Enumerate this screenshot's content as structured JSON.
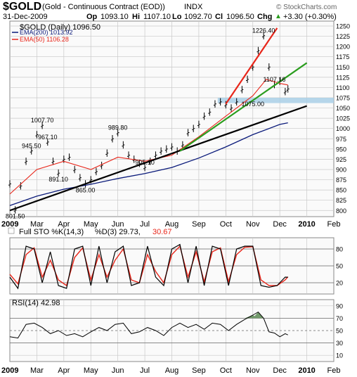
{
  "header": {
    "symbol": "$GOLD",
    "name": "(Gold - Continuous Contract (EOD))",
    "exchange": "INDX",
    "date": "31-Dec-2009",
    "open_label": "Op",
    "open": "1093.10",
    "high_label": "Hi",
    "high": "1107.10",
    "low_label": "Lo",
    "low": "1092.70",
    "close_label": "Cl",
    "close": "1096.50",
    "change_label": "Chg",
    "change": "+3.30 (+0.30%)",
    "change_arrow": "▲",
    "watermark": "© StockCharts.com"
  },
  "colors": {
    "price": "#000000",
    "ema200": "#0a1a7a",
    "ema50": "#e8261a",
    "trend_red": "#e8261a",
    "trend_green": "#2a9d1e",
    "trend_black": "#000000",
    "band": "#a9cfe6",
    "sto_k": "#000000",
    "sto_d": "#e8261a",
    "rsi": "#000000",
    "rsi_fill": "#5a8a52",
    "panel_bg": "#fafafa",
    "grid": "#c8c8c8"
  },
  "chart_data": [
    {
      "type": "line",
      "panel": "price",
      "legend": [
        {
          "label": "$GOLD (Daily) 1096.50",
          "color": "#000000"
        },
        {
          "label": "EMA(200) 1013.92",
          "color": "#0a1a7a"
        },
        {
          "label": "EMA(50) 1106.28",
          "color": "#e8261a"
        }
      ],
      "x_labels": [
        "2009",
        "Mar",
        "Apr",
        "May",
        "Jun",
        "Jul",
        "Aug",
        "Sep",
        "Oct",
        "Nov",
        "Dec",
        "2010",
        "Feb"
      ],
      "y_ticks": [
        800,
        825,
        850,
        875,
        900,
        925,
        950,
        975,
        1000,
        1025,
        1050,
        1075,
        1100,
        1125,
        1150,
        1175,
        1200,
        1225,
        1250
      ],
      "ylim": [
        785,
        1262
      ],
      "series": [
        {
          "name": "$GOLD (Daily)",
          "style": "ohlc",
          "x": [
            1.0,
            1.2,
            1.4,
            1.6,
            1.8,
            2.0,
            2.2,
            2.4,
            2.6,
            2.8,
            3.0,
            3.2,
            3.4,
            3.6,
            3.8,
            4.0,
            4.2,
            4.4,
            4.6,
            4.8,
            5.0,
            5.2,
            5.4,
            5.6,
            5.8,
            6.0,
            6.2,
            6.4,
            6.6,
            6.8,
            7.0,
            7.2,
            7.4,
            7.6,
            7.8,
            8.0,
            8.2,
            8.4,
            8.6,
            8.8,
            9.0,
            9.2,
            9.4,
            9.6,
            9.8,
            10.0,
            10.2,
            10.4,
            10.6,
            10.8,
            11.0,
            11.2,
            11.3
          ],
          "values": [
            865,
            801.5,
            860,
            920,
            945.5,
            985,
            1007.7,
            967.1,
            920,
            891.1,
            925,
            930,
            900,
            880,
            865,
            875,
            895,
            910,
            940,
            975,
            989.8,
            960,
            935,
            925,
            915,
            905.1,
            920,
            935,
            945,
            950,
            955,
            945,
            960,
            990,
            1000,
            1010,
            1030,
            1040,
            1060,
            1065,
            1058,
            1050,
            1065,
            1095,
            1120,
            1150,
            1190,
            1226.4,
            1150,
            1107.16,
            1115,
            1090,
            1096.5
          ]
        },
        {
          "name": "EMA(200)",
          "x": [
            1.0,
            2.0,
            3.0,
            4.0,
            5.0,
            6.0,
            7.0,
            8.0,
            9.0,
            10.0,
            11.0,
            11.3
          ],
          "values": [
            812,
            835,
            852,
            864,
            878,
            890,
            905,
            928,
            955,
            985,
            1010,
            1013.92
          ]
        },
        {
          "name": "EMA(50)",
          "x": [
            1.0,
            2.0,
            3.0,
            4.0,
            5.0,
            6.0,
            7.0,
            8.0,
            9.0,
            10.0,
            10.5,
            11.0,
            11.3
          ],
          "values": [
            840,
            900,
            920,
            900,
            930,
            920,
            935,
            980,
            1030,
            1080,
            1120,
            1110,
            1106.28
          ]
        }
      ],
      "annotations": [
        {
          "text": "801.50",
          "x": 1.2,
          "y": 801.5
        },
        {
          "text": "1007.70",
          "x": 2.2,
          "y": 1007.7
        },
        {
          "text": "967.10",
          "x": 2.4,
          "y": 967.1
        },
        {
          "text": "945.50",
          "x": 1.8,
          "y": 945.5
        },
        {
          "text": "891.10",
          "x": 2.8,
          "y": 891.1
        },
        {
          "text": "865.00",
          "x": 3.8,
          "y": 865
        },
        {
          "text": "989.80",
          "x": 5.0,
          "y": 989.8
        },
        {
          "text": "905.10",
          "x": 6.0,
          "y": 905.1
        },
        {
          "text": "1226.40",
          "x": 10.4,
          "y": 1226.4
        },
        {
          "text": "1107.16",
          "x": 10.8,
          "y": 1107.16
        },
        {
          "text": "1075.00",
          "x": 10.0,
          "y": 1075
        }
      ],
      "trendlines": [
        {
          "color": "trend_black",
          "from": [
            1.0,
            800
          ],
          "to": [
            12.0,
            1055
          ]
        },
        {
          "color": "trend_green",
          "from": [
            7.3,
            945
          ],
          "to": [
            12.0,
            1160
          ]
        },
        {
          "color": "trend_red",
          "from": [
            9.0,
            1060
          ],
          "to": [
            10.9,
            1245
          ]
        }
      ],
      "band": {
        "from": 1062,
        "to": 1075,
        "start_x": 8.7
      },
      "grid": true
    },
    {
      "type": "line",
      "panel": "stochastic",
      "title": "Full STO %K(14,3) %D(3) 29.73, 30.67",
      "legend": [
        {
          "label": "Full STO %K(14,3)",
          "color": "#000000"
        },
        {
          "label": "%D(3) 29.73,",
          "color": "#000000"
        },
        {
          "label": "30.67",
          "color": "#e8261a"
        }
      ],
      "y_ticks": [
        20,
        50,
        80
      ],
      "ylim": [
        0,
        100
      ],
      "series": [
        {
          "name": "%K",
          "x": [
            1.0,
            1.3,
            1.6,
            1.9,
            2.2,
            2.5,
            2.8,
            3.1,
            3.4,
            3.7,
            4.0,
            4.3,
            4.6,
            4.9,
            5.2,
            5.5,
            5.8,
            6.1,
            6.4,
            6.7,
            7.0,
            7.3,
            7.6,
            7.9,
            8.2,
            8.5,
            8.8,
            9.1,
            9.4,
            9.7,
            10.0,
            10.3,
            10.6,
            10.9,
            11.2,
            11.3
          ],
          "values": [
            30,
            10,
            85,
            80,
            20,
            75,
            15,
            10,
            80,
            85,
            15,
            85,
            20,
            75,
            85,
            15,
            20,
            85,
            30,
            15,
            80,
            88,
            20,
            85,
            15,
            85,
            80,
            15,
            80,
            85,
            85,
            15,
            12,
            15,
            30,
            29.73
          ]
        },
        {
          "name": "%D",
          "x": [
            1.0,
            1.3,
            1.6,
            1.9,
            2.2,
            2.5,
            2.8,
            3.1,
            3.4,
            3.7,
            4.0,
            4.3,
            4.6,
            4.9,
            5.2,
            5.5,
            5.8,
            6.1,
            6.4,
            6.7,
            7.0,
            7.3,
            7.6,
            7.9,
            8.2,
            8.5,
            8.8,
            9.1,
            9.4,
            9.7,
            10.0,
            10.3,
            10.6,
            10.9,
            11.2,
            11.3
          ],
          "values": [
            35,
            18,
            70,
            82,
            30,
            60,
            25,
            15,
            65,
            82,
            25,
            70,
            30,
            60,
            80,
            25,
            20,
            70,
            40,
            20,
            70,
            85,
            30,
            75,
            22,
            75,
            82,
            22,
            70,
            83,
            84,
            25,
            15,
            15,
            25,
            30.67
          ]
        }
      ]
    },
    {
      "type": "area",
      "panel": "rsi",
      "title": "RSI(14) 42.98",
      "legend": [
        {
          "label": "RSI(14) 42.98",
          "color": "#000000"
        }
      ],
      "x_labels": [
        "2009",
        "Mar",
        "Apr",
        "May",
        "Jun",
        "Jul",
        "Aug",
        "Sep",
        "Oct",
        "Nov",
        "Dec",
        "2010",
        "Feb"
      ],
      "y_ticks": [
        10,
        30,
        50,
        70,
        90
      ],
      "ylim": [
        0,
        100
      ],
      "series": [
        {
          "name": "RSI(14)",
          "x": [
            1.0,
            1.3,
            1.6,
            1.9,
            2.2,
            2.5,
            2.8,
            3.1,
            3.4,
            3.7,
            4.0,
            4.3,
            4.6,
            4.9,
            5.2,
            5.5,
            5.8,
            6.1,
            6.4,
            6.7,
            7.0,
            7.3,
            7.6,
            7.9,
            8.2,
            8.5,
            8.8,
            9.1,
            9.4,
            9.7,
            10.0,
            10.2,
            10.4,
            10.6,
            10.8,
            11.0,
            11.2,
            11.3
          ],
          "values": [
            40,
            38,
            60,
            62,
            55,
            45,
            50,
            42,
            45,
            40,
            48,
            55,
            50,
            60,
            62,
            45,
            48,
            55,
            50,
            42,
            55,
            62,
            55,
            60,
            52,
            62,
            60,
            50,
            60,
            68,
            75,
            80,
            70,
            48,
            46,
            40,
            45,
            42.98
          ]
        }
      ],
      "overbought": 70,
      "oversold": 30
    }
  ]
}
